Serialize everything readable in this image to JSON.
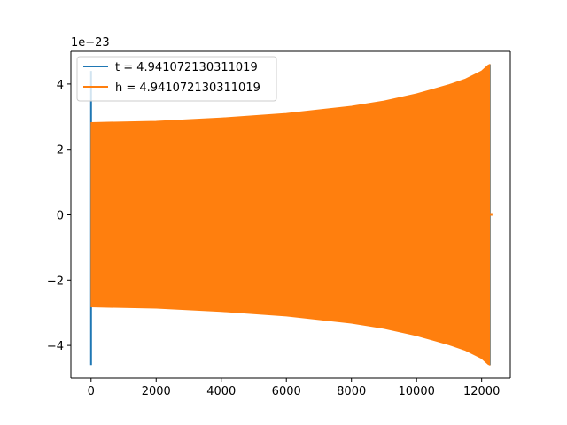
{
  "chart_data": {
    "type": "line",
    "title": "",
    "xlabel": "",
    "ylabel": "",
    "offset_text": "1e−23",
    "xlim": [
      -620,
      12880
    ],
    "ylim": [
      -5.0,
      5.0
    ],
    "x_ticks": [
      0,
      2000,
      4000,
      6000,
      8000,
      10000,
      12000
    ],
    "x_tick_labels": [
      "0",
      "2000",
      "4000",
      "6000",
      "8000",
      "10000",
      "12000"
    ],
    "y_ticks": [
      -4,
      -2,
      0,
      2,
      4
    ],
    "y_tick_labels": [
      "−4",
      "−2",
      "0",
      "2",
      "4"
    ],
    "grid": false,
    "legend_position": "upper-left",
    "series": [
      {
        "name": "t = 4.941072130311019",
        "color": "#1f77b4",
        "envelope": {
          "x": [
            0,
            12250
          ],
          "upper": [
            4.4,
            4.6
          ],
          "lower": [
            -4.6,
            -4.6
          ]
        }
      },
      {
        "name": "h = 4.941072130311019",
        "color": "#ff7f0e",
        "envelope": {
          "x": [
            0,
            2000,
            4000,
            6000,
            8000,
            9000,
            10000,
            10500,
            11000,
            11500,
            12000,
            12200,
            12250
          ],
          "upper": [
            2.82,
            2.86,
            2.96,
            3.1,
            3.32,
            3.48,
            3.7,
            3.84,
            3.98,
            4.15,
            4.4,
            4.58,
            4.6
          ],
          "lower": [
            -2.82,
            -2.86,
            -2.96,
            -3.1,
            -3.32,
            -3.48,
            -3.7,
            -3.84,
            -3.98,
            -4.15,
            -4.4,
            -4.58,
            -4.6
          ]
        }
      }
    ]
  }
}
